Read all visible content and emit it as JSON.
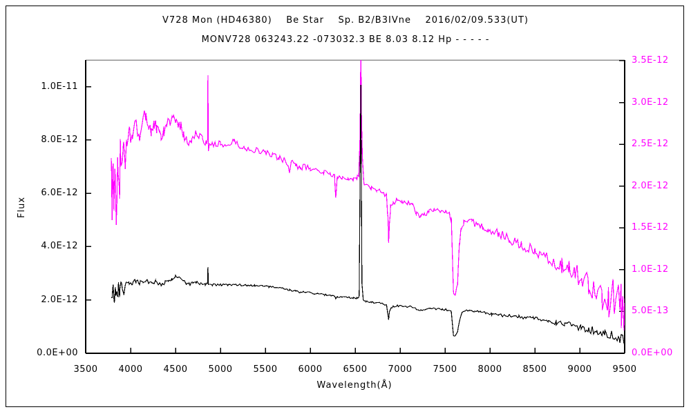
{
  "window": {
    "background": "#ffffff",
    "outer_border_color": "#000000"
  },
  "header": {
    "title": "V728 Mon (HD46380)    Be Star    Sp. B2/B3IVne    2016/02/09.533(UT)",
    "subtitle": "MONV728 063243.22 -073032.3 BE 8.03 8.12 Hp - - - - -"
  },
  "chart_data": {
    "type": "line",
    "title": "V728 Mon (HD46380) Be Star spectrum",
    "xlabel": "Wavelength(Å)",
    "ylabel_left": "Flux",
    "x_range": [
      3500,
      9500
    ],
    "x_ticks": [
      3500,
      4000,
      4500,
      5000,
      5500,
      6000,
      6500,
      7000,
      7500,
      8000,
      8500,
      9000,
      9500
    ],
    "x_tick_labels": [
      "3500",
      "4000",
      "4500",
      "5000",
      "5500",
      "6000",
      "6500",
      "7000",
      "7500",
      "8000",
      "8500",
      "9000",
      "9500"
    ],
    "grid": false,
    "legend": "none",
    "left_axis": {
      "color": "#000000",
      "range": [
        0,
        1.1e-11
      ],
      "tick_values": [
        0,
        2e-12,
        4e-12,
        6e-12,
        8e-12,
        1e-11
      ],
      "tick_labels": [
        "0.0E+00",
        "2.0E-12",
        "4.0E-12",
        "6.0E-12",
        "8.0E-12",
        "1.0E-11"
      ]
    },
    "right_axis": {
      "color": "#ff00ff",
      "range": [
        0,
        3.508e-12
      ],
      "tick_values": [
        0,
        5e-13,
        1e-12,
        1.5e-12,
        2e-12,
        2.5e-12,
        3e-12,
        3.5e-12
      ],
      "tick_labels": [
        "0.0E+00",
        "5.0E-13",
        "1.0E-12",
        "1.5E-12",
        "2.0E-12",
        "2.5E-12",
        "3.0E-12",
        "3.5E-12"
      ]
    },
    "flux_unit_scale": 1e-12,
    "series": [
      {
        "name": "spectrum-magenta",
        "axis": "right",
        "color": "#ff00ff",
        "points": [
          [
            3785,
            2.3
          ],
          [
            3795,
            1.75
          ],
          [
            3805,
            2.25
          ],
          [
            3815,
            1.8
          ],
          [
            3825,
            2.3
          ],
          [
            3840,
            1.7
          ],
          [
            3855,
            2.2
          ],
          [
            3870,
            1.85
          ],
          [
            3885,
            2.35
          ],
          [
            3900,
            2.15
          ],
          [
            3920,
            2.45
          ],
          [
            3940,
            2.3
          ],
          [
            3960,
            2.55
          ],
          [
            3990,
            2.6
          ],
          [
            4020,
            2.65
          ],
          [
            4060,
            2.72
          ],
          [
            4100,
            2.6
          ],
          [
            4130,
            2.78
          ],
          [
            4170,
            2.85
          ],
          [
            4200,
            2.72
          ],
          [
            4230,
            2.65
          ],
          [
            4260,
            2.75
          ],
          [
            4290,
            2.68
          ],
          [
            4320,
            2.62
          ],
          [
            4340,
            2.58
          ],
          [
            4370,
            2.65
          ],
          [
            4400,
            2.72
          ],
          [
            4440,
            2.78
          ],
          [
            4470,
            2.82
          ],
          [
            4500,
            2.78
          ],
          [
            4530,
            2.7
          ],
          [
            4560,
            2.72
          ],
          [
            4590,
            2.62
          ],
          [
            4620,
            2.55
          ],
          [
            4650,
            2.52
          ],
          [
            4680,
            2.58
          ],
          [
            4720,
            2.62
          ],
          [
            4760,
            2.6
          ],
          [
            4800,
            2.55
          ],
          [
            4840,
            2.5
          ],
          [
            4857,
            2.55
          ],
          [
            4861,
            3.33
          ],
          [
            4866,
            2.45
          ],
          [
            4900,
            2.52
          ],
          [
            4950,
            2.5
          ],
          [
            5000,
            2.52
          ],
          [
            5050,
            2.48
          ],
          [
            5100,
            2.5
          ],
          [
            5150,
            2.55
          ],
          [
            5200,
            2.48
          ],
          [
            5270,
            2.45
          ],
          [
            5350,
            2.44
          ],
          [
            5430,
            2.42
          ],
          [
            5500,
            2.4
          ],
          [
            5580,
            2.36
          ],
          [
            5650,
            2.34
          ],
          [
            5720,
            2.3
          ],
          [
            5770,
            2.18
          ],
          [
            5790,
            2.28
          ],
          [
            5840,
            2.26
          ],
          [
            5890,
            2.2
          ],
          [
            5920,
            2.24
          ],
          [
            6000,
            2.21
          ],
          [
            6080,
            2.18
          ],
          [
            6150,
            2.17
          ],
          [
            6220,
            2.14
          ],
          [
            6270,
            2.12
          ],
          [
            6284,
            1.84
          ],
          [
            6300,
            2.1
          ],
          [
            6360,
            2.11
          ],
          [
            6420,
            2.1
          ],
          [
            6480,
            2.08
          ],
          [
            6520,
            2.1
          ],
          [
            6540,
            2.12
          ],
          [
            6555,
            2.6
          ],
          [
            6563,
            3.7
          ],
          [
            6570,
            2.9
          ],
          [
            6580,
            2.35
          ],
          [
            6595,
            2.05
          ],
          [
            6620,
            2.0
          ],
          [
            6680,
            1.97
          ],
          [
            6740,
            1.95
          ],
          [
            6800,
            1.93
          ],
          [
            6850,
            1.88
          ],
          [
            6865,
            1.62
          ],
          [
            6872,
            1.3
          ],
          [
            6880,
            1.55
          ],
          [
            6895,
            1.75
          ],
          [
            6920,
            1.8
          ],
          [
            6960,
            1.83
          ],
          [
            7020,
            1.81
          ],
          [
            7080,
            1.8
          ],
          [
            7140,
            1.76
          ],
          [
            7180,
            1.68
          ],
          [
            7230,
            1.64
          ],
          [
            7270,
            1.67
          ],
          [
            7320,
            1.69
          ],
          [
            7380,
            1.71
          ],
          [
            7440,
            1.7
          ],
          [
            7500,
            1.68
          ],
          [
            7550,
            1.66
          ],
          [
            7570,
            1.6
          ],
          [
            7594,
            0.72
          ],
          [
            7615,
            0.68
          ],
          [
            7640,
            0.85
          ],
          [
            7660,
            1.3
          ],
          [
            7680,
            1.5
          ],
          [
            7710,
            1.56
          ],
          [
            7750,
            1.6
          ],
          [
            7800,
            1.57
          ],
          [
            7860,
            1.54
          ],
          [
            7920,
            1.51
          ],
          [
            7980,
            1.48
          ],
          [
            8040,
            1.46
          ],
          [
            8100,
            1.43
          ],
          [
            8160,
            1.4
          ],
          [
            8220,
            1.36
          ],
          [
            8280,
            1.33
          ],
          [
            8350,
            1.3
          ],
          [
            8420,
            1.27
          ],
          [
            8500,
            1.22
          ],
          [
            8570,
            1.18
          ],
          [
            8650,
            1.14
          ],
          [
            8720,
            1.1
          ],
          [
            8800,
            1.05
          ],
          [
            8880,
            1.0
          ],
          [
            8950,
            0.96
          ],
          [
            9020,
            0.92
          ],
          [
            9100,
            0.85
          ],
          [
            9180,
            0.78
          ],
          [
            9250,
            0.72
          ],
          [
            9320,
            0.66
          ],
          [
            9400,
            0.6
          ],
          [
            9460,
            0.54
          ],
          [
            9500,
            0.45
          ]
        ],
        "noise_envelope": [
          [
            3785,
            0.28
          ],
          [
            3950,
            0.22
          ],
          [
            4000,
            0.1
          ],
          [
            4200,
            0.08
          ],
          [
            4700,
            0.06
          ],
          [
            4900,
            0.04
          ],
          [
            5500,
            0.035
          ],
          [
            6500,
            0.03
          ],
          [
            7000,
            0.03
          ],
          [
            7500,
            0.035
          ],
          [
            8000,
            0.045
          ],
          [
            8500,
            0.07
          ],
          [
            8800,
            0.1
          ],
          [
            9000,
            0.13
          ],
          [
            9200,
            0.2
          ],
          [
            9350,
            0.26
          ],
          [
            9500,
            0.3
          ]
        ]
      },
      {
        "name": "spectrum-black",
        "axis": "left",
        "color": "#000000",
        "points": [
          [
            3785,
            2.35
          ],
          [
            3795,
            1.9
          ],
          [
            3805,
            2.4
          ],
          [
            3820,
            2.0
          ],
          [
            3835,
            2.45
          ],
          [
            3850,
            2.05
          ],
          [
            3865,
            2.4
          ],
          [
            3880,
            2.2
          ],
          [
            3900,
            2.5
          ],
          [
            3925,
            2.35
          ],
          [
            3950,
            2.55
          ],
          [
            3980,
            2.6
          ],
          [
            4020,
            2.65
          ],
          [
            4060,
            2.7
          ],
          [
            4100,
            2.62
          ],
          [
            4140,
            2.72
          ],
          [
            4170,
            2.76
          ],
          [
            4200,
            2.68
          ],
          [
            4240,
            2.62
          ],
          [
            4280,
            2.7
          ],
          [
            4320,
            2.62
          ],
          [
            4340,
            2.56
          ],
          [
            4380,
            2.66
          ],
          [
            4420,
            2.72
          ],
          [
            4460,
            2.8
          ],
          [
            4500,
            2.86
          ],
          [
            4540,
            2.82
          ],
          [
            4580,
            2.72
          ],
          [
            4620,
            2.62
          ],
          [
            4650,
            2.58
          ],
          [
            4690,
            2.62
          ],
          [
            4730,
            2.66
          ],
          [
            4780,
            2.62
          ],
          [
            4830,
            2.58
          ],
          [
            4857,
            2.6
          ],
          [
            4861,
            3.28
          ],
          [
            4866,
            2.54
          ],
          [
            4910,
            2.57
          ],
          [
            4960,
            2.56
          ],
          [
            5010,
            2.57
          ],
          [
            5080,
            2.56
          ],
          [
            5150,
            2.57
          ],
          [
            5220,
            2.56
          ],
          [
            5300,
            2.56
          ],
          [
            5380,
            2.55
          ],
          [
            5460,
            2.53
          ],
          [
            5540,
            2.5
          ],
          [
            5620,
            2.46
          ],
          [
            5700,
            2.42
          ],
          [
            5770,
            2.37
          ],
          [
            5840,
            2.34
          ],
          [
            5890,
            2.28
          ],
          [
            5930,
            2.31
          ],
          [
            6000,
            2.28
          ],
          [
            6080,
            2.23
          ],
          [
            6160,
            2.19
          ],
          [
            6230,
            2.16
          ],
          [
            6270,
            2.14
          ],
          [
            6284,
            2.02
          ],
          [
            6300,
            2.1
          ],
          [
            6360,
            2.12
          ],
          [
            6420,
            2.1
          ],
          [
            6480,
            2.07
          ],
          [
            6520,
            2.08
          ],
          [
            6545,
            2.15
          ],
          [
            6563,
            10.1
          ],
          [
            6575,
            2.6
          ],
          [
            6590,
            2.0
          ],
          [
            6620,
            1.95
          ],
          [
            6680,
            1.92
          ],
          [
            6740,
            1.89
          ],
          [
            6800,
            1.86
          ],
          [
            6850,
            1.8
          ],
          [
            6865,
            1.45
          ],
          [
            6872,
            1.26
          ],
          [
            6882,
            1.55
          ],
          [
            6900,
            1.72
          ],
          [
            6930,
            1.77
          ],
          [
            6980,
            1.78
          ],
          [
            7050,
            1.77
          ],
          [
            7120,
            1.74
          ],
          [
            7170,
            1.68
          ],
          [
            7230,
            1.61
          ],
          [
            7280,
            1.64
          ],
          [
            7330,
            1.68
          ],
          [
            7400,
            1.67
          ],
          [
            7470,
            1.65
          ],
          [
            7530,
            1.63
          ],
          [
            7570,
            1.58
          ],
          [
            7594,
            0.7
          ],
          [
            7615,
            0.64
          ],
          [
            7640,
            0.82
          ],
          [
            7665,
            1.3
          ],
          [
            7690,
            1.55
          ],
          [
            7720,
            1.6
          ],
          [
            7770,
            1.61
          ],
          [
            7830,
            1.59
          ],
          [
            7900,
            1.56
          ],
          [
            7960,
            1.5
          ],
          [
            8020,
            1.46
          ],
          [
            8090,
            1.43
          ],
          [
            8160,
            1.41
          ],
          [
            8240,
            1.39
          ],
          [
            8320,
            1.37
          ],
          [
            8400,
            1.33
          ],
          [
            8480,
            1.3
          ],
          [
            8560,
            1.26
          ],
          [
            8650,
            1.21
          ],
          [
            8740,
            1.16
          ],
          [
            8830,
            1.1
          ],
          [
            8920,
            1.04
          ],
          [
            9010,
            0.97
          ],
          [
            9100,
            0.9
          ],
          [
            9190,
            0.82
          ],
          [
            9280,
            0.74
          ],
          [
            9370,
            0.65
          ],
          [
            9440,
            0.57
          ],
          [
            9500,
            0.5
          ]
        ],
        "noise_envelope": [
          [
            3785,
            0.35
          ],
          [
            3950,
            0.25
          ],
          [
            4000,
            0.1
          ],
          [
            4300,
            0.08
          ],
          [
            4700,
            0.06
          ],
          [
            5000,
            0.04
          ],
          [
            6000,
            0.035
          ],
          [
            7000,
            0.035
          ],
          [
            7600,
            0.04
          ],
          [
            8000,
            0.05
          ],
          [
            8400,
            0.07
          ],
          [
            8800,
            0.1
          ],
          [
            9100,
            0.14
          ],
          [
            9300,
            0.18
          ],
          [
            9500,
            0.22
          ]
        ]
      }
    ],
    "plot_frame": {
      "top_border_color": "#909090",
      "side_border_color": "#000000"
    }
  }
}
